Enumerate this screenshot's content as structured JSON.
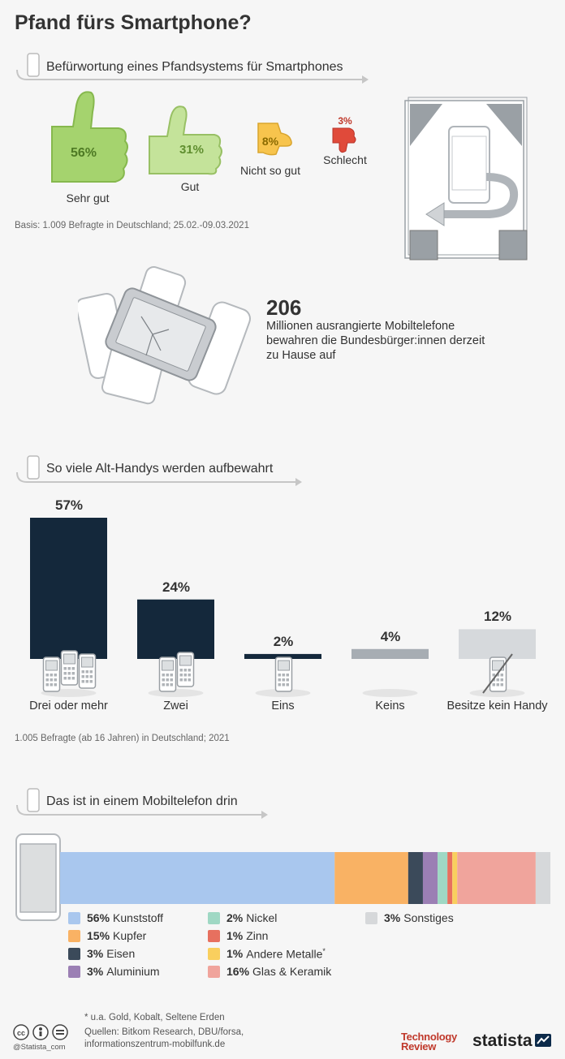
{
  "title": "Pfand fürs Smartphone?",
  "section1": {
    "heading": "Befürwortung eines Pfandsystems für Smartphones",
    "items": [
      {
        "pct": "56%",
        "label": "Sehr gut",
        "value": 56,
        "color": "#a5d36e"
      },
      {
        "pct": "31%",
        "label": "Gut",
        "value": 31,
        "color": "#c4e39a"
      },
      {
        "pct": "8%",
        "label": "Nicht so gut",
        "value": 8,
        "color": "#f7c44d"
      },
      {
        "pct": "3%",
        "label": "Schlecht",
        "value": 3,
        "color": "#e04a3a"
      }
    ],
    "basis": "Basis: 1.009 Befragte in Deutschland; 25.02.-09.03.2021"
  },
  "fact": {
    "number": "206",
    "text": "Millionen ausrangierte Mobiltelefone bewahren die Bundesbürger:innen derzeit zu Hause auf"
  },
  "section2": {
    "heading": "So viele Alt-Handys werden aufbewahrt",
    "basis": "1.005 Befragte (ab 16 Jahren) in Deutschland; 2021"
  },
  "section3": {
    "heading": "Das ist in einem Mobiltelefon drin",
    "footnote": "* u.a. Gold, Kobalt, Seltene Erden"
  },
  "footer": {
    "sources_line1": "Quellen: Bitkom Research, DBU/forsa,",
    "sources_line2": "informationszentrum-mobilfunk.de",
    "handle": "@Statista_com",
    "logo_tr_1": "Technology",
    "logo_tr_2": "Review",
    "logo_statista": "statista"
  },
  "chart_data": [
    {
      "type": "bar",
      "categories": [
        "Drei oder mehr",
        "Zwei",
        "Eins",
        "Keins",
        "Besitze kein Handy"
      ],
      "values": [
        57,
        24,
        2,
        4,
        12
      ],
      "value_labels": [
        "57%",
        "24%",
        "2%",
        "4%",
        "12%"
      ],
      "colors": [
        "#14283b",
        "#14283b",
        "#14283b",
        "#a7adb3",
        "#d6d9dc"
      ],
      "title": "So viele Alt-Handys werden aufbewahrt",
      "ylim": [
        0,
        57
      ]
    },
    {
      "type": "bar",
      "orientation": "stacked-horizontal",
      "series": [
        {
          "name": "Kunststoff",
          "label": "56%",
          "value": 56,
          "color": "#a9c7ee"
        },
        {
          "name": "Kupfer",
          "label": "15%",
          "value": 15,
          "color": "#f9b264"
        },
        {
          "name": "Eisen",
          "label": "3%",
          "value": 3,
          "color": "#3b4a5a"
        },
        {
          "name": "Aluminium",
          "label": "3%",
          "value": 3,
          "color": "#9b7fb4"
        },
        {
          "name": "Nickel",
          "label": "2%",
          "value": 2,
          "color": "#9fd8c4"
        },
        {
          "name": "Zinn",
          "label": "1%",
          "value": 1,
          "color": "#e7705f"
        },
        {
          "name": "Andere Metalle*",
          "label": "1%",
          "value": 1,
          "color": "#f9cf5e"
        },
        {
          "name": "Glas & Keramik",
          "label": "16%",
          "value": 16,
          "color": "#f0a49c"
        },
        {
          "name": "Sonstiges",
          "label": "3%",
          "value": 3,
          "color": "#d6d8da"
        }
      ],
      "title": "Das ist in einem Mobiltelefon drin",
      "legend": "bottom"
    }
  ]
}
